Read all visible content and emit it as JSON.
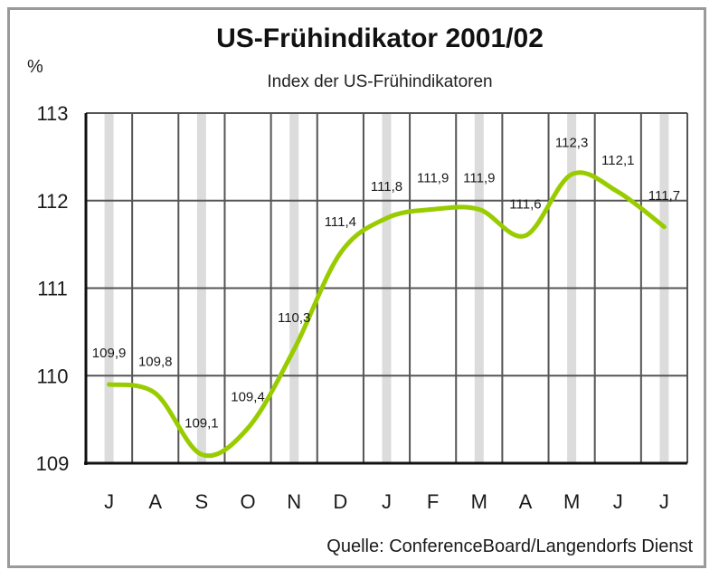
{
  "chart_data": {
    "type": "line",
    "title": "US-Frühindikator 2001/02",
    "subtitle": "Index der US-Frühindikatoren",
    "ylabel": "%",
    "source": "Quelle: ConferenceBoard/Langendorfs Dienst",
    "categories": [
      "J",
      "A",
      "S",
      "O",
      "N",
      "D",
      "J",
      "F",
      "M",
      "A",
      "M",
      "J",
      "J"
    ],
    "values": [
      109.9,
      109.8,
      109.1,
      109.4,
      110.3,
      111.4,
      111.8,
      111.9,
      111.9,
      111.6,
      112.3,
      112.1,
      111.7
    ],
    "value_labels": [
      "109,9",
      "109,8",
      "109,1",
      "109,4",
      "110,3",
      "111,4",
      "111,8",
      "111,9",
      "111,9",
      "111,6",
      "112,3",
      "112,1",
      "111,7"
    ],
    "y_ticks": [
      109,
      110,
      111,
      112,
      113
    ],
    "ylim": [
      109,
      113
    ],
    "grid": true,
    "line_color": "#99cc00",
    "grid_color": "#555555",
    "band_color": "#dcdcdc"
  }
}
